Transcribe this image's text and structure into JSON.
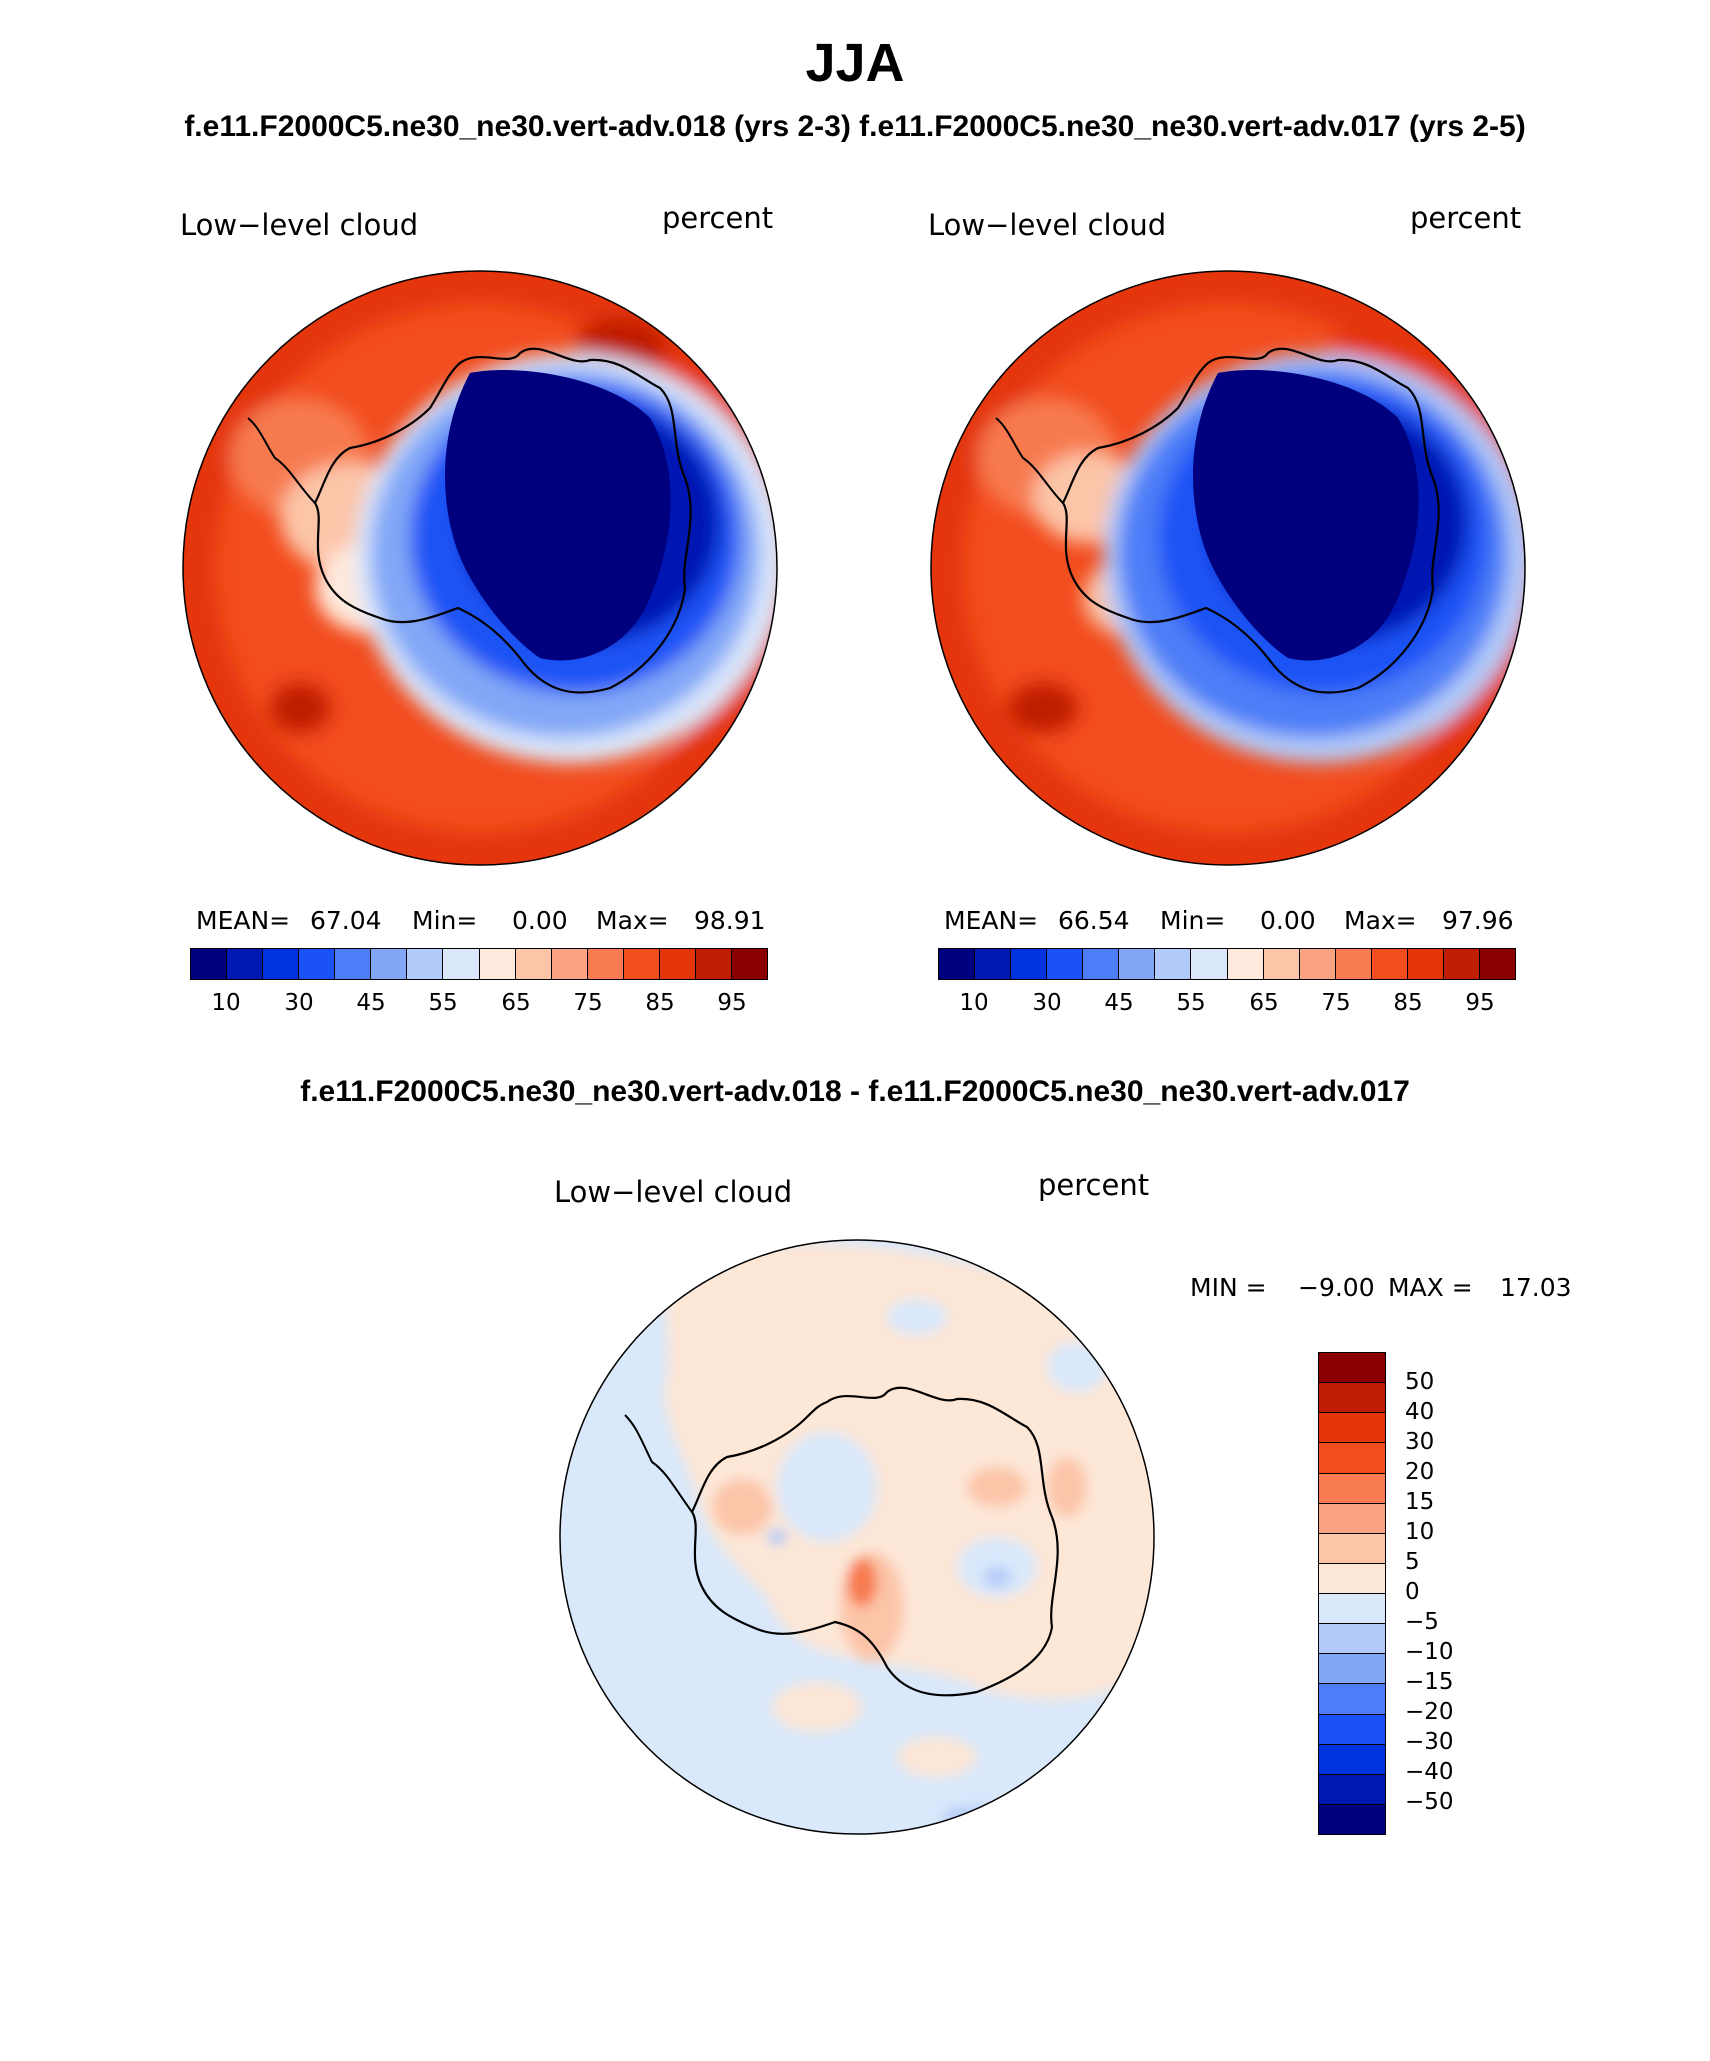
{
  "figure": {
    "season": "JJA",
    "subtitle": "f.e11.F2000C5.ne30_ne30.vert-adv.018 (yrs 2-3)  f.e11.F2000C5.ne30_ne30.vert-adv.017 (yrs 2-5)",
    "diff_title": "f.e11.F2000C5.ne30_ne30.vert-adv.018 - f.e11.F2000C5.ne30_ne30.vert-adv.017"
  },
  "chart_data": [
    {
      "type": "heatmap",
      "projection": "south-polar-stereographic",
      "case": "f.e11.F2000C5.ne30_ne30.vert-adv.018 (yrs 2-3)",
      "variable": "Low−level cloud",
      "units": "percent",
      "stats": {
        "mean_label": "MEAN=",
        "mean": "67.04",
        "min_label": "Min=",
        "min": "0.00",
        "max_label": "Max=",
        "max": "98.91"
      },
      "levels": [
        "10",
        "20",
        "30",
        "40",
        "45",
        "50",
        "55",
        "60",
        "65",
        "70",
        "75",
        "80",
        "85",
        "90",
        "95"
      ],
      "tick_labels": [
        "10",
        "30",
        "45",
        "55",
        "65",
        "75",
        "85",
        "95"
      ],
      "colors": [
        "#00007f",
        "#0019b3",
        "#0033e0",
        "#1a52f5",
        "#4d7ef7",
        "#82a7f7",
        "#b3cbf8",
        "#dbe8fb",
        "#ffe9dc",
        "#fcc5a8",
        "#fba283",
        "#f77a50",
        "#f24d1e",
        "#e43508",
        "#bf1d04",
        "#8a0000"
      ]
    },
    {
      "type": "heatmap",
      "projection": "south-polar-stereographic",
      "case": "f.e11.F2000C5.ne30_ne30.vert-adv.017 (yrs 2-5)",
      "variable": "Low−level cloud",
      "units": "percent",
      "stats": {
        "mean_label": "MEAN=",
        "mean": "66.54",
        "min_label": "Min=",
        "min": "0.00",
        "max_label": "Max=",
        "max": "97.96"
      },
      "levels": [
        "10",
        "20",
        "30",
        "40",
        "45",
        "50",
        "55",
        "60",
        "65",
        "70",
        "75",
        "80",
        "85",
        "90",
        "95"
      ],
      "tick_labels": [
        "10",
        "30",
        "45",
        "55",
        "65",
        "75",
        "85",
        "95"
      ],
      "colors": [
        "#00007f",
        "#0019b3",
        "#0033e0",
        "#1a52f5",
        "#4d7ef7",
        "#82a7f7",
        "#b3cbf8",
        "#dbe8fb",
        "#ffe9dc",
        "#fcc5a8",
        "#fba283",
        "#f77a50",
        "#f24d1e",
        "#e43508",
        "#bf1d04",
        "#8a0000"
      ]
    },
    {
      "type": "heatmap",
      "projection": "south-polar-stereographic",
      "case": "difference",
      "variable": "Low−level cloud",
      "units": "percent",
      "stats": {
        "min_label": "MIN =",
        "min": "−9.00",
        "max_label": "MAX =",
        "max": "17.03"
      },
      "levels": [
        "50",
        "40",
        "30",
        "20",
        "15",
        "10",
        "5",
        "0",
        "−5",
        "−10",
        "−15",
        "−20",
        "−30",
        "−40",
        "−50"
      ],
      "colors": [
        "#8a0000",
        "#bf1d04",
        "#e43508",
        "#f24d1e",
        "#f77a50",
        "#fba283",
        "#fcc5a8",
        "#fde7d7",
        "#d9e8fb",
        "#b3cbf8",
        "#82a7f7",
        "#4d7ef7",
        "#1a52f5",
        "#0033e0",
        "#0019b3",
        "#00007f"
      ]
    }
  ]
}
